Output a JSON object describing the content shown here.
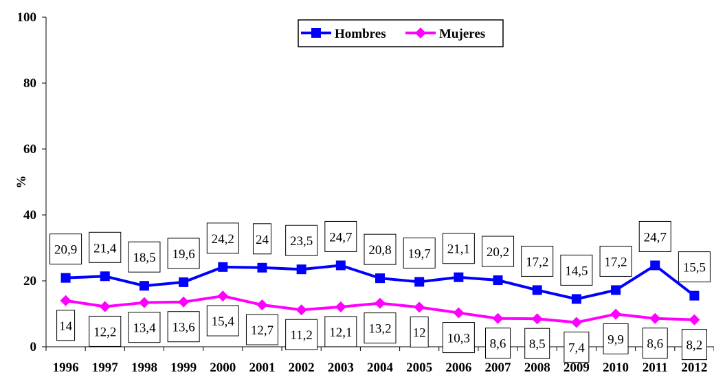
{
  "chart_data": {
    "type": "line",
    "title": "",
    "xlabel": "",
    "ylabel": "%",
    "ylim": [
      0,
      100
    ],
    "yticks": [
      0,
      20,
      40,
      60,
      80,
      100
    ],
    "grid": false,
    "legend_position": "top",
    "categories": [
      "1996",
      "1997",
      "1998",
      "1999",
      "2000",
      "2001",
      "2002",
      "2003",
      "2004",
      "2005",
      "2006",
      "2007",
      "2008",
      "2009",
      "2010",
      "2011",
      "2012"
    ],
    "series": [
      {
        "name": "Hombres",
        "color": "#0000ff",
        "marker": "square",
        "values": [
          20.9,
          21.4,
          18.5,
          19.6,
          24.2,
          24,
          23.5,
          24.7,
          20.8,
          19.7,
          21.1,
          20.2,
          17.2,
          14.5,
          17.2,
          24.7,
          15.5
        ],
        "labels": [
          "20,9",
          "21,4",
          "18,5",
          "19,6",
          "24,2",
          "24",
          "23,5",
          "24,7",
          "20,8",
          "19,7",
          "21,1",
          "20,2",
          "17,2",
          "14,5",
          "17,2",
          "24,7",
          "15,5"
        ],
        "label_side": "above"
      },
      {
        "name": "Mujeres",
        "color": "#ff00ff",
        "marker": "diamond",
        "values": [
          14,
          12.2,
          13.4,
          13.6,
          15.4,
          12.7,
          11.2,
          12.1,
          13.2,
          12,
          10.3,
          8.6,
          8.5,
          7.4,
          9.9,
          8.6,
          8.2
        ],
        "labels": [
          "14",
          "12,2",
          "13,4",
          "13,6",
          "15,4",
          "12,7",
          "11,2",
          "12,1",
          "13,2",
          "12",
          "10,3",
          "8,6",
          "8,5",
          "7,4",
          "9,9",
          "8,6",
          "8,2"
        ],
        "label_side": "below"
      }
    ]
  }
}
